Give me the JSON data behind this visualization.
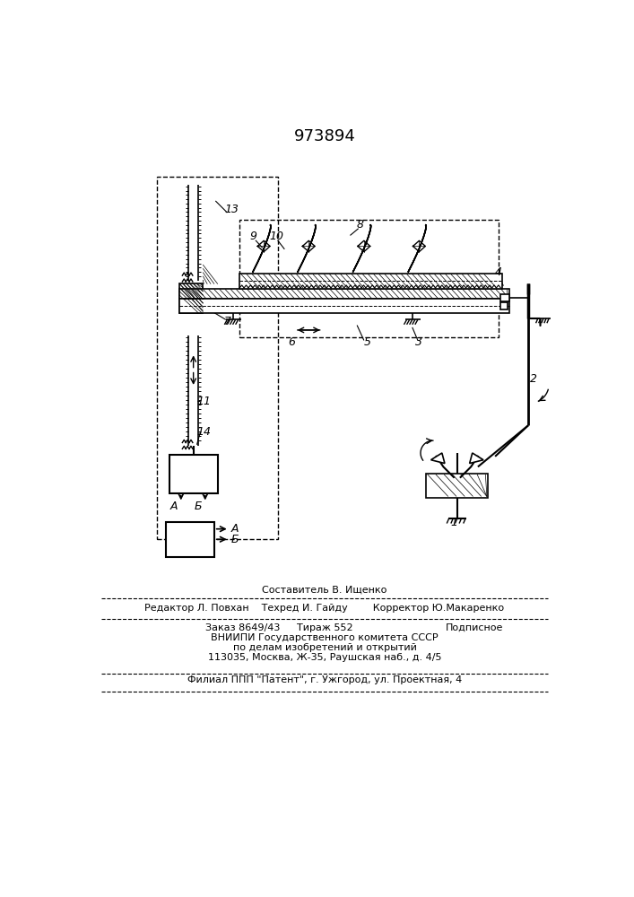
{
  "patent_number": "973894",
  "bg": "#ffffff",
  "lc": "#000000",
  "footer": {
    "line1": "Составитель В. Ищенко",
    "line2_l": "Редактор Л. Повхан",
    "line2_m": "Техред И. Гайду",
    "line2_r": "Корректор Ю.Макаренко",
    "line3_l": "Заказ 8649/43",
    "line3_m": "Тираж 552",
    "line3_r": "Подписное",
    "line4": "ВНИИПИ Государственного комитета СССР",
    "line5": "по делам изобретений и открытий",
    "line6": "113035, Москва, Ж-35, Раушская наб., д. 4/5",
    "line7": "Филиал ППП \"Патент\", г. Ужгород, ул. Проектная, 4"
  }
}
